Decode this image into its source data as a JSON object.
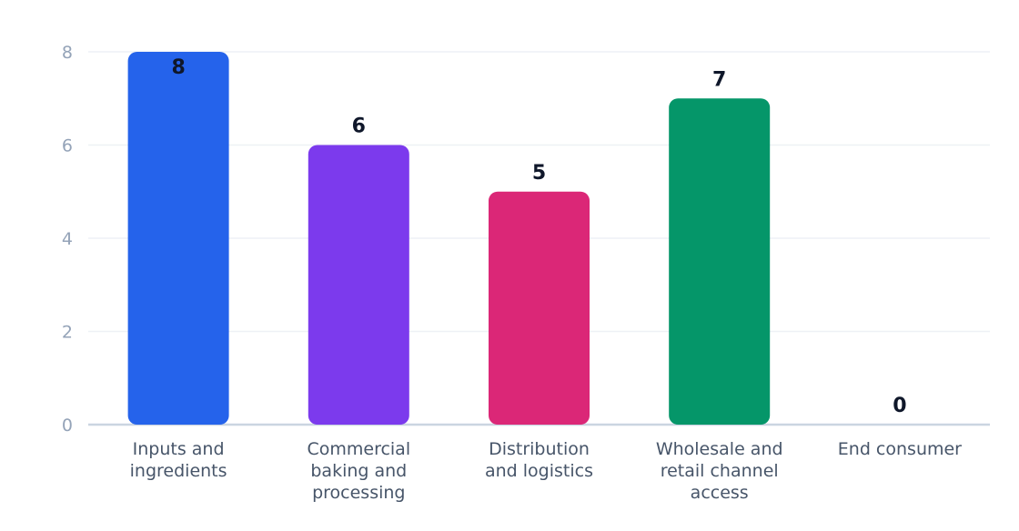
{
  "chart_data": {
    "type": "bar",
    "title": "",
    "xlabel": "",
    "ylabel": "",
    "categories": [
      [
        "Inputs and",
        "ingredients"
      ],
      [
        "Commercial",
        "baking and",
        "processing"
      ],
      [
        "Distribution",
        "and logistics"
      ],
      [
        "Wholesale and",
        "retail channel",
        "access"
      ],
      [
        "End consumer"
      ]
    ],
    "values": [
      8,
      6,
      5,
      7,
      0
    ],
    "colors": [
      "#2563eb",
      "#7c3aed",
      "#db2777",
      "#059669",
      "#d97706"
    ],
    "ylim": [
      0,
      8
    ],
    "yticks": [
      0,
      2,
      4,
      6,
      8
    ],
    "grid": true,
    "legend": "none",
    "data_labels": true
  }
}
